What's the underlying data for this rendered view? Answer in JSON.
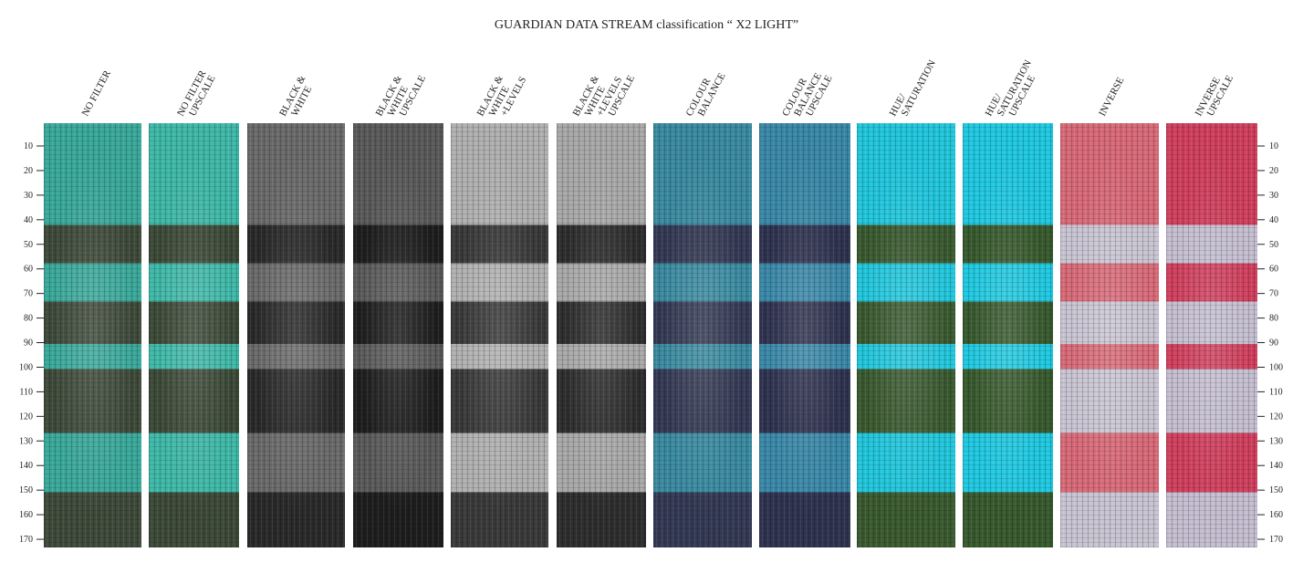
{
  "header": {
    "title": "GUARDIAN DATA STREAM classification “ X2 LIGHT”"
  },
  "columns": [
    {
      "label": [
        "NO FILTER"
      ]
    },
    {
      "label": [
        "NO FILTER",
        "UPSCALE"
      ]
    },
    {
      "label": [
        "BLACK &",
        "WHITE"
      ]
    },
    {
      "label": [
        "BLACK &",
        "WHITE",
        "UPSCALE"
      ]
    },
    {
      "label": [
        "BLACK &",
        "WHITE",
        "+LEVELS"
      ]
    },
    {
      "label": [
        "BLACK &",
        "WHITE",
        "+LEVELS",
        "UPSCALE"
      ]
    },
    {
      "label": [
        "COLOUR",
        "BALANCE"
      ]
    },
    {
      "label": [
        "COLOUR",
        "BALANCE",
        "UPSCALE"
      ]
    },
    {
      "label": [
        "HUE/",
        "SATURATION"
      ]
    },
    {
      "label": [
        "HUE/",
        "SATURATION",
        "UPSCALE"
      ]
    },
    {
      "label": [
        "INVERSE"
      ]
    },
    {
      "label": [
        "INVERSE",
        "UPSCALE"
      ]
    }
  ],
  "scale": {
    "ticks": [
      10,
      20,
      30,
      40,
      50,
      60,
      70,
      80,
      90,
      100,
      110,
      120,
      130,
      140,
      150,
      160,
      170
    ]
  }
}
